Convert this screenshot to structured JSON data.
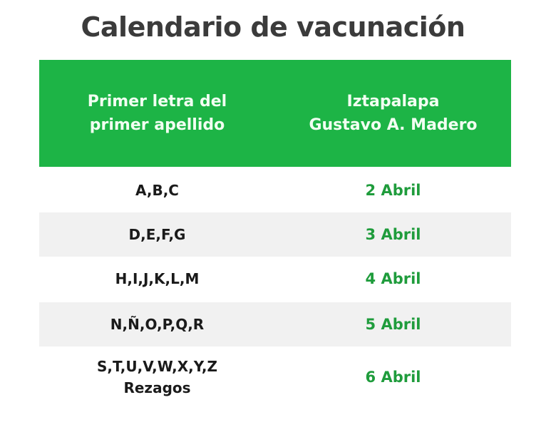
{
  "title": "Calendario de vacunación",
  "colors": {
    "header_bg": "#1db446",
    "date_text": "#1f9c3c",
    "alt_row": "#f1f1f1"
  },
  "table": {
    "headers": [
      "Primer letra del\nprimer apellido",
      "Iztapalapa\nGustavo A. Madero"
    ],
    "rows": [
      {
        "letters": "A,B,C",
        "date": "2 Abril"
      },
      {
        "letters": "D,E,F,G",
        "date": "3 Abril"
      },
      {
        "letters": "H,I,J,K,L,M",
        "date": "4 Abril"
      },
      {
        "letters": "N,Ñ,O,P,Q,R",
        "date": "5 Abril"
      },
      {
        "letters": "S,T,U,V,W,X,Y,Z\nRezagos",
        "date": "6 Abril"
      }
    ]
  }
}
